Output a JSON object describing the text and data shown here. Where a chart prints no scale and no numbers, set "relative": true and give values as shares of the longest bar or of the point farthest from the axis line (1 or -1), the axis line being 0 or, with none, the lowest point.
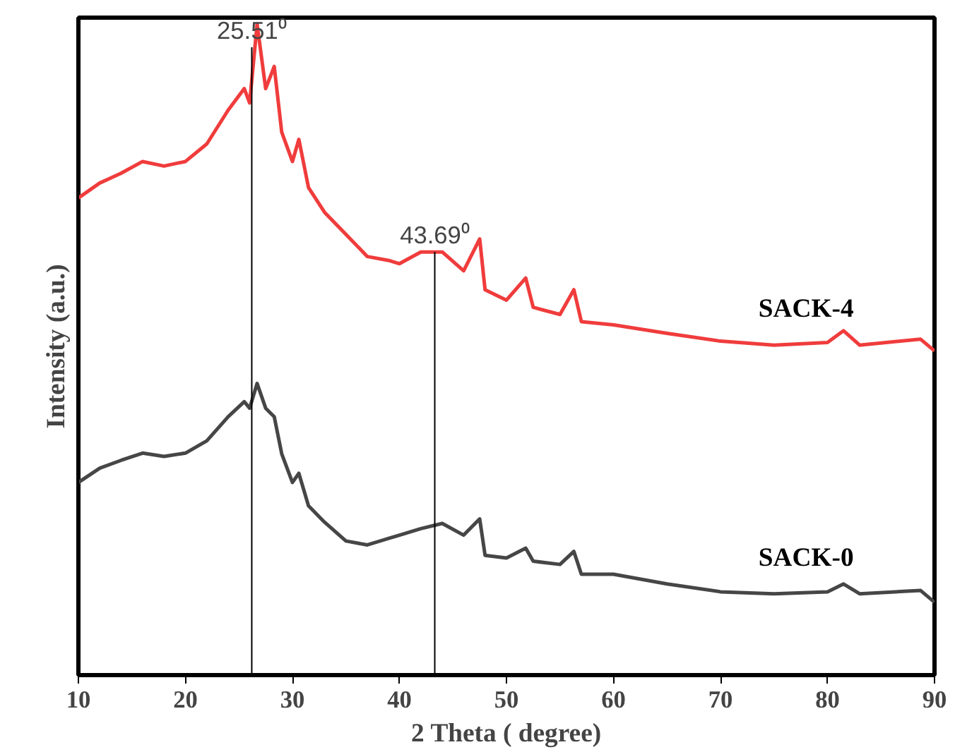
{
  "chart_data": {
    "type": "line",
    "relative": true,
    "xlabel": "2 Theta ( degree)",
    "ylabel": "Intensity (a.u.)",
    "xlim": [
      10,
      90
    ],
    "xticks": [
      10,
      20,
      30,
      40,
      50,
      60,
      70,
      80,
      90
    ],
    "grid": false,
    "legend": false,
    "marker": "none",
    "line_style": "solid",
    "ref_lines": [
      {
        "axis": "x",
        "value": 26.2,
        "label": "25.51⁰",
        "color": "#000000"
      },
      {
        "axis": "x",
        "value": 43.3,
        "label": "43.69⁰",
        "color": "#000000"
      }
    ],
    "series": [
      {
        "name": "SACK-4",
        "color": "#f03c3c",
        "x": [
          10,
          12,
          14,
          16,
          18,
          20,
          22,
          24,
          25.5,
          26,
          26.7,
          27.5,
          28.3,
          29,
          30,
          30.6,
          31.5,
          33,
          35,
          37,
          39,
          40,
          42,
          44,
          46,
          47.5,
          48,
          50,
          51.8,
          52.5,
          55,
          56.3,
          57,
          60,
          65,
          70,
          75,
          80,
          81.5,
          83,
          88.7,
          90
        ],
        "values": [
          0.733,
          0.756,
          0.771,
          0.789,
          0.782,
          0.789,
          0.816,
          0.868,
          0.901,
          0.879,
          1.0,
          0.901,
          0.935,
          0.834,
          0.789,
          0.823,
          0.749,
          0.711,
          0.677,
          0.643,
          0.637,
          0.632,
          0.65,
          0.65,
          0.621,
          0.67,
          0.592,
          0.576,
          0.61,
          0.565,
          0.554,
          0.592,
          0.543,
          0.538,
          0.525,
          0.513,
          0.507,
          0.511,
          0.529,
          0.507,
          0.516,
          0.498
        ]
      },
      {
        "name": "SACK-0",
        "color": "#464646",
        "x": [
          10,
          12,
          14,
          16,
          18,
          20,
          22,
          24,
          25.5,
          26,
          26.7,
          27.5,
          28.3,
          29,
          30,
          30.6,
          31.5,
          33,
          35,
          37,
          39,
          40,
          42,
          44,
          46,
          47.5,
          48,
          50,
          51.8,
          52.5,
          55,
          56.3,
          57,
          60,
          65,
          70,
          75,
          80,
          81.5,
          83,
          88.7,
          90
        ],
        "values": [
          0.296,
          0.318,
          0.33,
          0.341,
          0.336,
          0.341,
          0.36,
          0.397,
          0.42,
          0.41,
          0.448,
          0.41,
          0.397,
          0.34,
          0.296,
          0.31,
          0.26,
          0.235,
          0.206,
          0.2,
          0.21,
          0.215,
          0.225,
          0.233,
          0.215,
          0.24,
          0.184,
          0.18,
          0.195,
          0.175,
          0.17,
          0.19,
          0.155,
          0.155,
          0.14,
          0.128,
          0.125,
          0.128,
          0.14,
          0.125,
          0.13,
          0.112
        ]
      }
    ]
  }
}
